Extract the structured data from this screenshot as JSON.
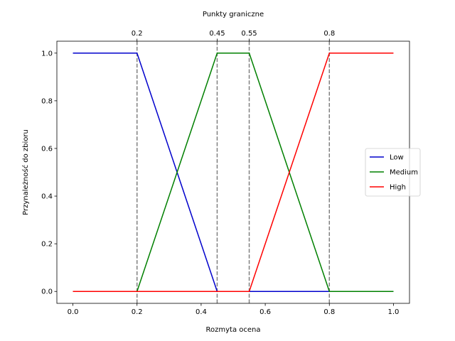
{
  "chart_data": {
    "type": "line",
    "title": "",
    "xlabel": "Rozmyta ocena",
    "ylabel": "Przynależność do zbioru",
    "top_axis_title": "Punkty graniczne",
    "xlim": [
      -0.05,
      1.05
    ],
    "ylim": [
      -0.05,
      1.05
    ],
    "xticks": [
      0.0,
      0.2,
      0.4,
      0.6,
      0.8,
      1.0
    ],
    "xtick_labels": [
      "0.0",
      "0.2",
      "0.4",
      "0.6",
      "0.8",
      "1.0"
    ],
    "yticks": [
      0.0,
      0.2,
      0.4,
      0.6,
      0.8,
      1.0
    ],
    "ytick_labels": [
      "0.0",
      "0.2",
      "0.4",
      "0.6",
      "0.8",
      "1.0"
    ],
    "top_ticks": [
      0.2,
      0.45,
      0.55,
      0.8
    ],
    "top_tick_labels": [
      "0.2",
      "0.45",
      "0.55",
      "0.8"
    ],
    "grid": false,
    "legend_position": "center-right",
    "series": [
      {
        "name": "Low",
        "color": "#0000cc",
        "points": [
          [
            0,
            1
          ],
          [
            0.2,
            1
          ],
          [
            0.45,
            0
          ],
          [
            0.55,
            0
          ],
          [
            0.8,
            0
          ],
          [
            1,
            0
          ]
        ]
      },
      {
        "name": "Medium",
        "color": "#008000",
        "points": [
          [
            0,
            0
          ],
          [
            0.2,
            0
          ],
          [
            0.45,
            1
          ],
          [
            0.55,
            1
          ],
          [
            0.8,
            0
          ],
          [
            1,
            0
          ]
        ]
      },
      {
        "name": "High",
        "color": "#ff0000",
        "points": [
          [
            0,
            0
          ],
          [
            0.2,
            0
          ],
          [
            0.45,
            0
          ],
          [
            0.55,
            0
          ],
          [
            0.8,
            1
          ],
          [
            1,
            1
          ]
        ]
      }
    ],
    "vlines": {
      "x": [
        0.2,
        0.45,
        0.55,
        0.8
      ],
      "color": "#808080",
      "style": "dashed"
    }
  }
}
